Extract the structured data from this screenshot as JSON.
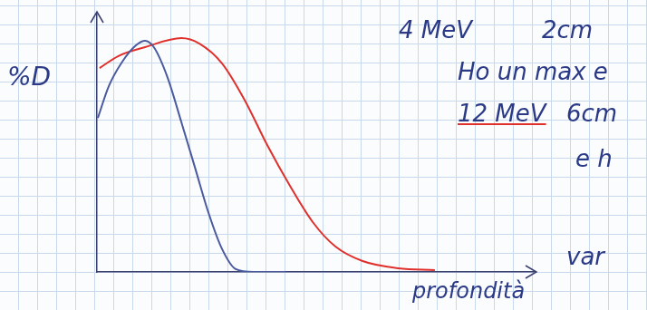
{
  "chart_data": {
    "type": "line",
    "xlabel": "profondità",
    "ylabel": "%D",
    "annotations": [
      "4 MeV",
      "2cm",
      "Ho un max e",
      "12 MeV",
      "6cm",
      "e h",
      "var"
    ],
    "xlim": [
      0,
      100
    ],
    "ylim": [
      0,
      100
    ],
    "grid": false,
    "tick_labels": false,
    "series": [
      {
        "color": "#4a5a9e",
        "x": [
          0.2,
          2.7,
          5.8,
          8.9,
          11.0,
          13.0,
          16.1,
          19.3,
          22.4,
          25.5,
          28.6,
          31.7,
          35.8,
          43.1
        ],
        "values": [
          59.6,
          71.9,
          81.4,
          87.7,
          89.5,
          87.0,
          75.4,
          57.9,
          40.4,
          22.8,
          8.8,
          1.1,
          0,
          0
        ]
      },
      {
        "color": "#e0302c",
        "x": [
          0.6,
          4.8,
          11.0,
          19.3,
          23.4,
          28.6,
          33.7,
          38.9,
          44.1,
          49.3,
          54.5,
          60.7,
          68.9,
          77.2
        ],
        "values": [
          78.9,
          83.5,
          87.0,
          90.5,
          88.4,
          80.7,
          66.7,
          49.1,
          33.3,
          19.3,
          9.8,
          4.2,
          1.4,
          0.7
        ]
      }
    ]
  }
}
